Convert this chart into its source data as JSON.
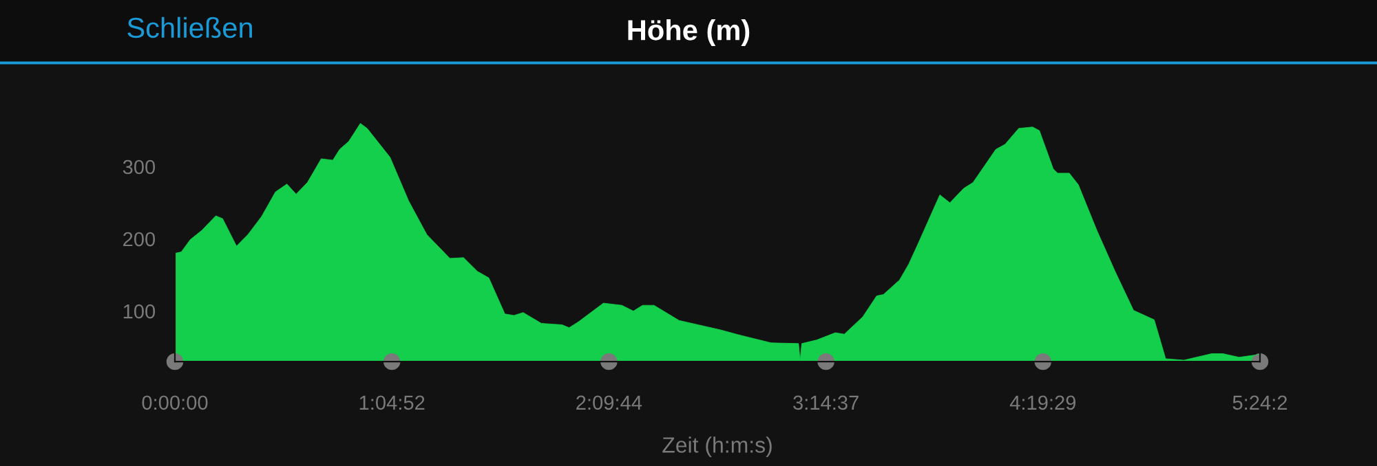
{
  "chart_data": {
    "type": "area",
    "title": "Höhe (m)",
    "xlabel": "Zeit (h:m:s)",
    "annotations": [
      "Schließen"
    ],
    "x": [
      0,
      0.032,
      0.077,
      0.135,
      0.204,
      0.238,
      0.307,
      0.364,
      0.432,
      0.501,
      0.558,
      0.604,
      0.66,
      0.729,
      0.787,
      0.821,
      0.866,
      0.924,
      0.958,
      1.072,
      1.164,
      1.255,
      1.37,
      1.438,
      1.507,
      1.564,
      1.644,
      1.689,
      1.735,
      1.826,
      1.929,
      1.964,
      2.01,
      2.135,
      2.227,
      2.284,
      2.33,
      2.387,
      2.512,
      2.718,
      2.81,
      2.97,
      3.107,
      3.115,
      3.123,
      3.198,
      3.29,
      3.335,
      3.427,
      3.496,
      3.53,
      3.61,
      3.656,
      3.702,
      3.811,
      3.861,
      3.93,
      3.976,
      4.09,
      4.136,
      4.204,
      4.273,
      4.307,
      4.376,
      4.398,
      4.456,
      4.501,
      4.593,
      4.684,
      4.776,
      4.879,
      4.936,
      5.027,
      5.165,
      5.222,
      5.302,
      5.405
    ],
    "series": [
      {
        "color": "#14cf4c",
        "values": [
          180,
          182,
          199,
          212,
          232,
          228,
          190,
          206,
          231,
          265,
          276,
          262,
          278,
          311,
          309,
          324,
          335,
          360,
          353,
          313,
          253,
          206,
          173,
          174,
          155,
          146,
          96,
          94,
          98,
          83,
          81,
          77,
          85,
          111,
          108,
          100,
          108,
          108,
          87,
          74,
          67,
          56,
          55,
          32,
          55,
          60,
          70,
          68,
          92,
          121,
          123,
          143,
          165,
          193,
          261,
          250,
          270,
          278,
          324,
          331,
          353,
          355,
          350,
          297,
          291,
          291,
          275,
          212,
          155,
          101,
          88,
          34,
          32,
          41,
          41,
          36,
          40
        ]
      }
    ],
    "xlim": [
      0,
      5.4058
    ],
    "ylim": [
      30,
      385
    ],
    "xticks": [
      {
        "value": 0,
        "label": "0:00:00"
      },
      {
        "value": 1.0811,
        "label": "1:04:52"
      },
      {
        "value": 2.1622,
        "label": "2:09:44"
      },
      {
        "value": 3.2436,
        "label": "3:14:37"
      },
      {
        "value": 4.3247,
        "label": "4:19:29"
      },
      {
        "value": 5.4058,
        "label": "5:24:2"
      }
    ],
    "yticks": [
      100,
      200,
      300
    ],
    "grid": false
  }
}
